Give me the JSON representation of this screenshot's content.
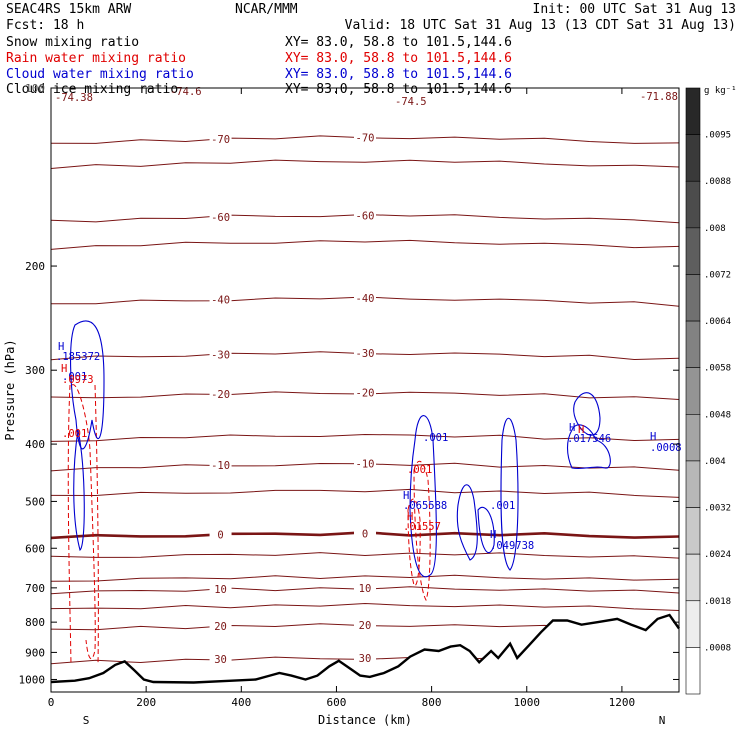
{
  "header": {
    "title": "SEAC4RS 15km ARW",
    "org": "NCAR/MMM",
    "init": "Init: 00 UTC Sat 31 Aug 13",
    "fcst": "Fcst:   18 h",
    "valid": "Valid: 18 UTC Sat 31 Aug 13 (13 CDT Sat 31 Aug 13)",
    "fields": [
      {
        "name": "Snow mixing ratio",
        "xy": "XY=  83.0, 58.8 to 101.5,144.6",
        "color": "#000000"
      },
      {
        "name": "Rain water mixing ratio",
        "xy": "XY=  83.0, 58.8 to 101.5,144.6",
        "color": "#e00000"
      },
      {
        "name": "Cloud water mixing ratio",
        "xy": "XY=  83.0, 58.8 to 101.5,144.6",
        "color": "#0000d0"
      },
      {
        "name": "Cloud ice mixing ratio",
        "xy": "XY=  83.0, 58.8 to 101.5,144.6",
        "color": "#000000"
      }
    ]
  },
  "chart_data": {
    "type": "contour-cross-section",
    "xlabel": "Distance (km)",
    "ylabel": "Pressure (hPa)",
    "xlim": [
      0,
      1320
    ],
    "ylim": [
      1050,
      100
    ],
    "y_scale": "log",
    "x_ticks": [
      0,
      200,
      400,
      600,
      800,
      1000,
      1200
    ],
    "y_ticks": [
      200,
      300,
      400,
      500,
      600,
      700,
      800,
      900,
      1000
    ],
    "left_end_label": "S",
    "right_end_label": "N",
    "temperature_isotherms": {
      "color": "#7a1515",
      "levels": [
        {
          "p": 124,
          "value": "-70"
        },
        {
          "p": 136,
          "value": ""
        },
        {
          "p": 168,
          "value": "-60"
        },
        {
          "p": 186,
          "value": ""
        },
        {
          "p": 232,
          "value": "-40"
        },
        {
          "p": 287,
          "value": "-30"
        },
        {
          "p": 335,
          "value": "-20"
        },
        {
          "p": 395,
          "value": ""
        },
        {
          "p": 442,
          "value": "-10"
        },
        {
          "p": 490,
          "value": ""
        },
        {
          "p": 575,
          "value": "0"
        },
        {
          "p": 622,
          "value": ""
        },
        {
          "p": 680,
          "value": ""
        },
        {
          "p": 712,
          "value": "10"
        },
        {
          "p": 760,
          "value": ""
        },
        {
          "p": 822,
          "value": "20"
        },
        {
          "p": 935,
          "value": "30"
        }
      ],
      "extreme_labels": [
        "-74.38",
        "-74.6",
        "-74.5",
        "-71.88"
      ]
    },
    "cloud_water_labels": [
      ".185372",
      ".001",
      ".065588",
      ".049738",
      ".017546",
      ".0008"
    ],
    "rain_water_labels": [
      ".0973",
      ".001",
      ".001",
      ".01557"
    ],
    "max_marker": "H",
    "terrain_km_hpa": [
      [
        0,
        1010
      ],
      [
        50,
        1005
      ],
      [
        80,
        995
      ],
      [
        110,
        975
      ],
      [
        135,
        945
      ],
      [
        155,
        932
      ],
      [
        175,
        965
      ],
      [
        195,
        1000
      ],
      [
        215,
        1010
      ],
      [
        300,
        1012
      ],
      [
        380,
        1005
      ],
      [
        430,
        1000
      ],
      [
        460,
        985
      ],
      [
        480,
        975
      ],
      [
        505,
        985
      ],
      [
        535,
        1000
      ],
      [
        560,
        985
      ],
      [
        585,
        950
      ],
      [
        605,
        930
      ],
      [
        630,
        960
      ],
      [
        650,
        985
      ],
      [
        670,
        990
      ],
      [
        700,
        975
      ],
      [
        730,
        950
      ],
      [
        755,
        915
      ],
      [
        785,
        890
      ],
      [
        815,
        895
      ],
      [
        840,
        880
      ],
      [
        860,
        875
      ],
      [
        880,
        895
      ],
      [
        900,
        935
      ],
      [
        925,
        895
      ],
      [
        940,
        920
      ],
      [
        965,
        870
      ],
      [
        980,
        920
      ],
      [
        1005,
        875
      ],
      [
        1030,
        832
      ],
      [
        1055,
        795
      ],
      [
        1085,
        795
      ],
      [
        1115,
        808
      ],
      [
        1150,
        800
      ],
      [
        1190,
        790
      ],
      [
        1220,
        808
      ],
      [
        1250,
        825
      ],
      [
        1275,
        790
      ],
      [
        1300,
        778
      ],
      [
        1320,
        820
      ]
    ],
    "colorbar": {
      "unit": "g kg⁻¹",
      "labels": [
        ".0095",
        ".0088",
        ".008",
        ".0072",
        ".0064",
        ".0058",
        ".0048",
        ".004",
        ".0032",
        ".0024",
        ".0018",
        ".0008"
      ]
    }
  }
}
